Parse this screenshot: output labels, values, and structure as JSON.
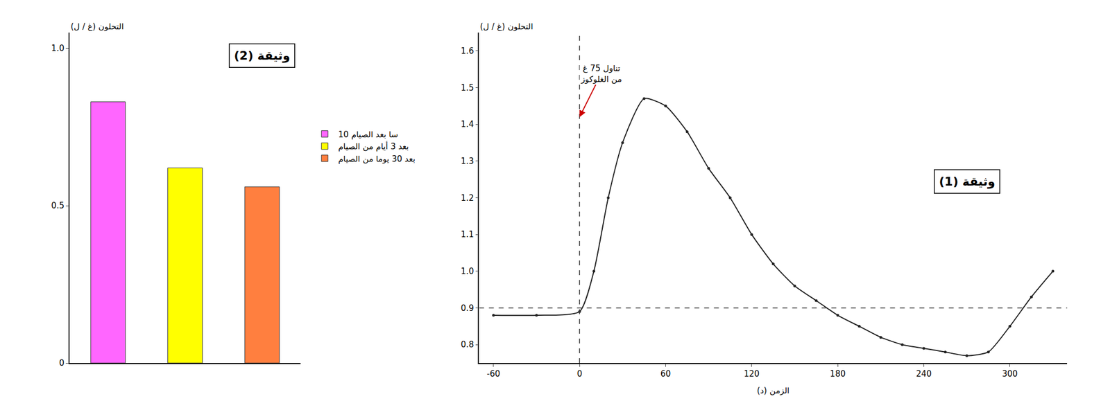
{
  "chart_data": [
    {
      "type": "bar",
      "title": "وثيقة (2)",
      "y_label": "التحلون (غ / ل)",
      "categories": [
        "10 سا بعد الصيام",
        "بعد 3 أيام من الصيام",
        "بعد 30 يوما من الصيام"
      ],
      "values": [
        0.83,
        0.62,
        0.56
      ],
      "colors": [
        "#ff66ff",
        "#ffff00",
        "#ff7f3f"
      ],
      "ylim": [
        0,
        1.05
      ],
      "yticks": [
        0,
        0.5,
        {
          "value": 1,
          "label": "1.0"
        }
      ],
      "tick_labels": "y",
      "legend": "right",
      "grid": false
    },
    {
      "type": "line",
      "title": "وثيقة (1)",
      "x_label": "الزمن (د)",
      "y_label": "التحلون (غ / ل)",
      "x": [
        -60,
        -30,
        0,
        10,
        20,
        30,
        45,
        60,
        75,
        90,
        105,
        120,
        135,
        150,
        165,
        180,
        195,
        210,
        225,
        240,
        255,
        270,
        285,
        300,
        315,
        330
      ],
      "values": [
        0.88,
        0.88,
        0.89,
        1.0,
        1.2,
        1.35,
        1.47,
        1.45,
        1.38,
        1.28,
        1.2,
        1.1,
        1.02,
        0.96,
        0.92,
        0.88,
        0.85,
        0.82,
        0.8,
        0.79,
        0.78,
        0.77,
        0.78,
        0.85,
        0.93,
        1.0
      ],
      "color": "#222222",
      "marker": "circle",
      "xlim": [
        -70,
        340
      ],
      "ylim": [
        0.75,
        1.65
      ],
      "xticks": [
        -60,
        0,
        60,
        120,
        180,
        240,
        300
      ],
      "yticks": [
        0.8,
        0.9,
        {
          "value": 1,
          "label": "1.0"
        },
        1.1,
        1.2,
        1.3,
        1.4,
        1.5,
        1.6
      ],
      "reference_lines": [
        {
          "axis": "y",
          "value": 0.9
        },
        {
          "axis": "x",
          "value": 0
        }
      ],
      "annotations": [
        {
          "text": "تناول 75 غ\nمن الغلوكوز",
          "x": 0,
          "y": 1.42
        }
      ],
      "grid": false
    }
  ]
}
